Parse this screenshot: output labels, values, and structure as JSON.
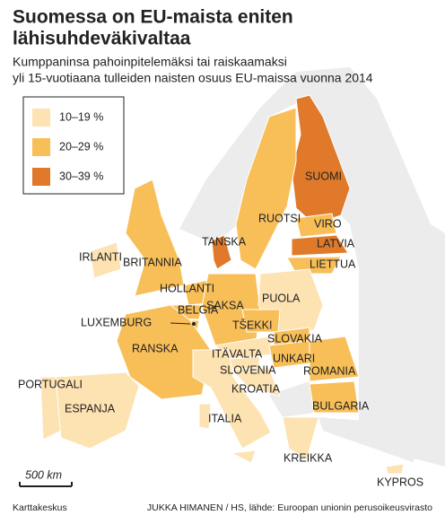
{
  "header": {
    "title_lines": [
      "Suomessa on EU-maista eniten",
      "lähisuhdeväkivaltaa"
    ],
    "subtitle_lines": [
      "Kumppaninsa pahoinpitelemäksi tai raiskaamaksi",
      "yli 15-vuotiaana tulleiden naisten osuus EU-maissa vuonna 2014"
    ]
  },
  "legend": [
    {
      "label": "10–19 %",
      "color": "#fde2b2"
    },
    {
      "label": "20–29 %",
      "color": "#f8bf58"
    },
    {
      "label": "30–39 %",
      "color": "#e07a2a"
    }
  ],
  "countries": [
    {
      "label": "SUOMI",
      "color": "#e07a2a"
    },
    {
      "label": "RUOTSI",
      "color": "#f8bf58"
    },
    {
      "label": "VIRO",
      "color": "#f8bf58"
    },
    {
      "label": "LATVIA",
      "color": "#e07a2a"
    },
    {
      "label": "LIETTUA",
      "color": "#f8bf58"
    },
    {
      "label": "TANSKA",
      "color": "#e07a2a"
    },
    {
      "label": "IRLANTI",
      "color": "#fde2b2"
    },
    {
      "label": "BRITANNIA",
      "color": "#f8bf58"
    },
    {
      "label": "HOLLANTI",
      "color": "#f8bf58"
    },
    {
      "label": "BELGIA",
      "color": "#f8bf58"
    },
    {
      "label": "LUXEMBURG",
      "color": "#f8bf58"
    },
    {
      "label": "SAKSA",
      "color": "#f8bf58"
    },
    {
      "label": "PUOLA",
      "color": "#fde2b2"
    },
    {
      "label": "TŠEKKI",
      "color": "#f8bf58"
    },
    {
      "label": "SLOVAKIA",
      "color": "#f8bf58"
    },
    {
      "label": "RANSKA",
      "color": "#f8bf58"
    },
    {
      "label": "ITÄVALTA",
      "color": "#fde2b2"
    },
    {
      "label": "UNKARI",
      "color": "#f8bf58"
    },
    {
      "label": "SLOVENIA",
      "color": "#fde2b2"
    },
    {
      "label": "ROMANIA",
      "color": "#f8bf58"
    },
    {
      "label": "KROATIA",
      "color": "#fde2b2"
    },
    {
      "label": "PORTUGALI",
      "color": "#fde2b2"
    },
    {
      "label": "ESPANJA",
      "color": "#fde2b2"
    },
    {
      "label": "BULGARIA",
      "color": "#f8bf58"
    },
    {
      "label": "ITALIA",
      "color": "#fde2b2"
    },
    {
      "label": "KREIKKA",
      "color": "#fde2b2"
    },
    {
      "label": "KYPROS",
      "color": "#fde2b2"
    }
  ],
  "scale": "500 km",
  "footer": {
    "left": "Karttakeskus",
    "right": "JUKKA HIMANEN / HS, lähde: Euroopan unionin perusoikeusvirasto"
  }
}
